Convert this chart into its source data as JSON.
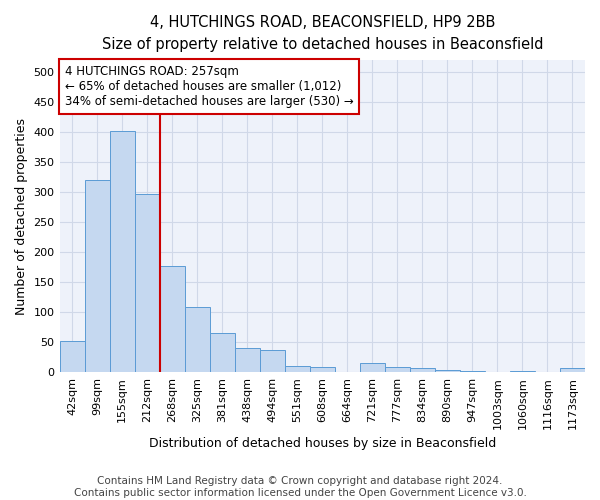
{
  "title": "4, HUTCHINGS ROAD, BEACONSFIELD, HP9 2BB",
  "subtitle": "Size of property relative to detached houses in Beaconsfield",
  "xlabel": "Distribution of detached houses by size in Beaconsfield",
  "ylabel": "Number of detached properties",
  "footer_line1": "Contains HM Land Registry data © Crown copyright and database right 2024.",
  "footer_line2": "Contains public sector information licensed under the Open Government Licence v3.0.",
  "categories": [
    "42sqm",
    "99sqm",
    "155sqm",
    "212sqm",
    "268sqm",
    "325sqm",
    "381sqm",
    "438sqm",
    "494sqm",
    "551sqm",
    "608sqm",
    "664sqm",
    "721sqm",
    "777sqm",
    "834sqm",
    "890sqm",
    "947sqm",
    "1003sqm",
    "1060sqm",
    "1116sqm",
    "1173sqm"
  ],
  "values": [
    52,
    320,
    402,
    297,
    176,
    108,
    65,
    40,
    36,
    10,
    9,
    0,
    15,
    9,
    7,
    4,
    1,
    0,
    1,
    0,
    6
  ],
  "bar_color": "#c5d8f0",
  "bar_edge_color": "#5b9bd5",
  "grid_color": "#d0d8e8",
  "annotation_text": "4 HUTCHINGS ROAD: 257sqm\n← 65% of detached houses are smaller (1,012)\n34% of semi-detached houses are larger (530) →",
  "annotation_box_color": "#ffffff",
  "annotation_box_edge": "#cc0000",
  "vline_color": "#cc0000",
  "vline_x_index": 4,
  "ylim": [
    0,
    520
  ],
  "yticks": [
    0,
    50,
    100,
    150,
    200,
    250,
    300,
    350,
    400,
    450,
    500
  ],
  "background_color": "#ffffff",
  "plot_bg_color": "#eef2fa",
  "title_fontsize": 10.5,
  "subtitle_fontsize": 9.5,
  "axis_label_fontsize": 9,
  "tick_fontsize": 8,
  "annotation_fontsize": 8.5,
  "footer_fontsize": 7.5
}
